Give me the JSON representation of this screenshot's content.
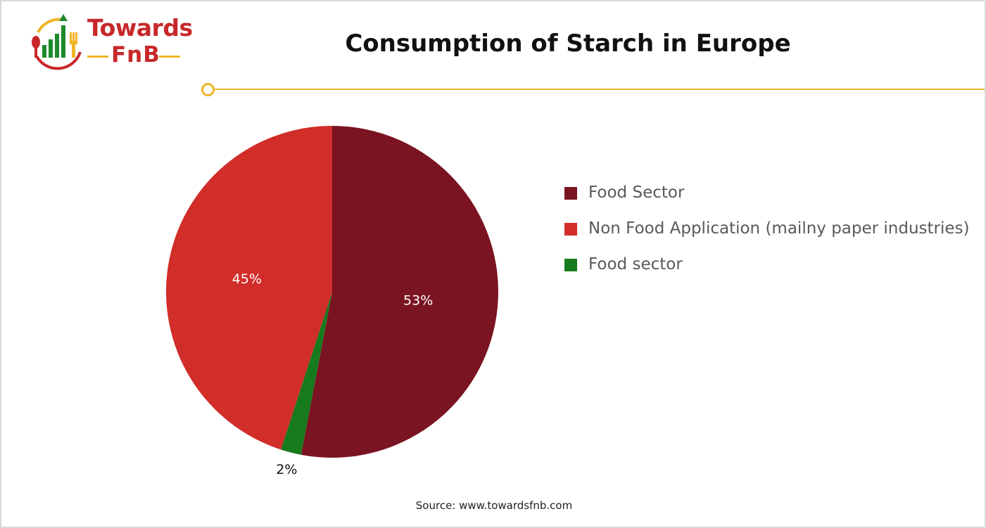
{
  "brand": {
    "name_line1": "Towards",
    "name_line2": "FnB"
  },
  "colors": {
    "brand_red": "#c8282a",
    "brand_green": "#1e8a2a",
    "brand_yellow": "#f0b429"
  },
  "icons": {
    "logo": "bar-chart-with-spoon-and-fork-icon"
  },
  "source_text": "Source: www.towardsfnb.com",
  "chart_data": {
    "type": "pie",
    "title": "Consumption of Starch in Europe",
    "slices": [
      {
        "label": "Food Sector",
        "value": 53,
        "display": "53%",
        "color": "#7b1422"
      },
      {
        "label": "Food sector",
        "value": 2,
        "display": "2%",
        "color": "#177a1c"
      },
      {
        "label": "Non Food Application (mailny paper industries)",
        "value": 45,
        "display": "45%",
        "color": "#d12d29"
      }
    ],
    "legend": [
      {
        "label": "Food Sector",
        "color": "#7b1422"
      },
      {
        "label": "Non Food Application (mailny paper industries)",
        "color": "#d12d29"
      },
      {
        "label": "Food sector",
        "color": "#177a1c"
      }
    ],
    "legend_position": "right",
    "start_angle_deg": 0,
    "direction": "clockwise"
  }
}
